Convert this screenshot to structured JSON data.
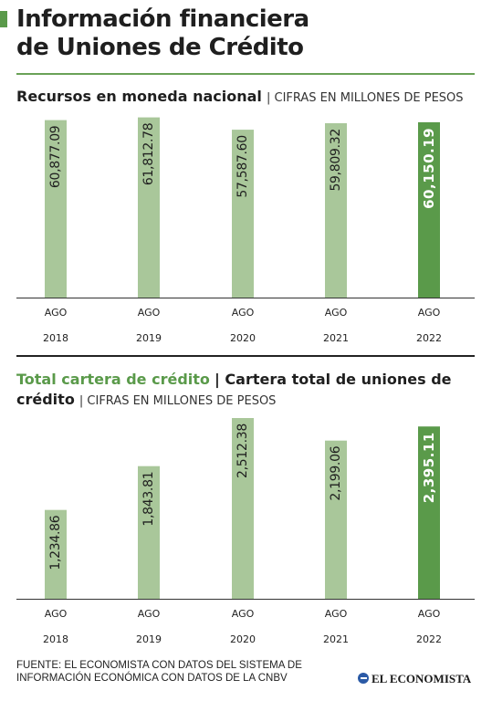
{
  "title": {
    "line1": "Información financiera",
    "line2": "de Uniones de Crédito"
  },
  "section1": {
    "title": "Recursos en moneda nacional",
    "subtitle": "| CIFRAS EN MILLONES DE PESOS"
  },
  "section2": {
    "title_green": "Total cartera de crédito",
    "title_rest": "| Cartera total de uniones de crédito",
    "subtitle": "| CIFRAS EN MILLONES DE PESOS"
  },
  "source": "FUENTE: EL ECONOMISTA CON DATOS DEL SISTEMA DE INFORMACIÓN ECONÓMICA CON DATOS DE LA CNBV",
  "logo": "EL ECONOMISTA",
  "colors": {
    "bar": "#a9c79a",
    "highlight": "#5a9a4a",
    "text": "#1f1f1f"
  },
  "chart_data": [
    {
      "type": "bar",
      "title": "Recursos en moneda nacional",
      "categories": [
        "AGO 2018",
        "AGO 2019",
        "AGO 2020",
        "AGO 2021",
        "AGO 2022"
      ],
      "cat_top": [
        "AGO",
        "AGO",
        "AGO",
        "AGO",
        "AGO"
      ],
      "cat_bottom": [
        "2018",
        "2019",
        "2020",
        "2021",
        "2022"
      ],
      "values": [
        60877.09,
        61812.78,
        57587.6,
        59809.32,
        60150.19
      ],
      "labels": [
        "60,877.09",
        "61,812.78",
        "57,587.60",
        "59,809.32",
        "60,150.19"
      ],
      "highlight_index": 4,
      "ylim": [
        0,
        62000
      ],
      "grid": false
    },
    {
      "type": "bar",
      "title": "Total cartera de crédito",
      "categories": [
        "AGO 2018",
        "AGO 2019",
        "AGO 2020",
        "AGO 2021",
        "AGO 2022"
      ],
      "cat_top": [
        "AGO",
        "AGO",
        "AGO",
        "AGO",
        "AGO"
      ],
      "cat_bottom": [
        "2018",
        "2019",
        "2020",
        "2021",
        "2022"
      ],
      "values": [
        1234.86,
        1843.81,
        2512.38,
        2199.06,
        2395.11
      ],
      "labels": [
        "1,234.86",
        "1,843.81",
        "2,512.38",
        "2,199.06",
        "2,395.11"
      ],
      "highlight_index": 4,
      "ylim": [
        0,
        2512.38
      ],
      "grid": false
    }
  ]
}
